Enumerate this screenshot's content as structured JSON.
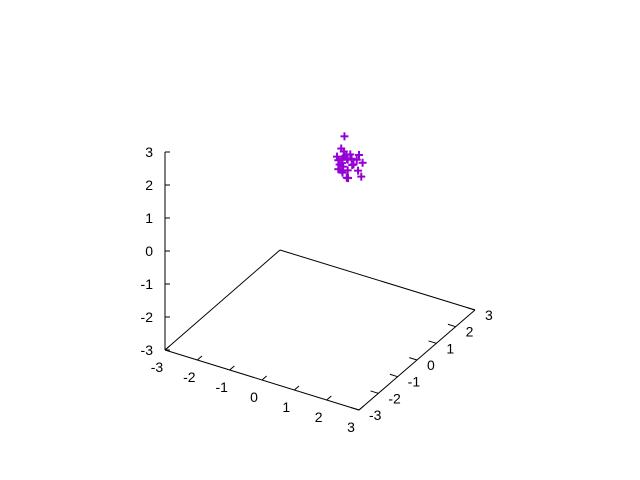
{
  "chart_data": {
    "type": "scatter",
    "dimensions": 3,
    "xlim": [
      -3,
      3
    ],
    "ylim": [
      -3,
      3
    ],
    "zlim": [
      -3,
      3
    ],
    "x_ticks": [
      "-3",
      "-2",
      "-1",
      "0",
      "1",
      "2",
      "3"
    ],
    "y_ticks": [
      "-3",
      "-2",
      "-1",
      "0",
      "1",
      "2",
      "3"
    ],
    "z_ticks": [
      "-3",
      "-2",
      "-1",
      "0",
      "1",
      "2",
      "3"
    ],
    "grid": false,
    "legend": "none",
    "marker": "plus",
    "color": "#9400d3",
    "series": [
      {
        "points": [
          [
            -0.3,
            1.6,
            1.6
          ],
          [
            -0.2,
            1.7,
            1.4
          ],
          [
            -0.25,
            1.55,
            1.2
          ],
          [
            -0.15,
            1.65,
            1.3
          ],
          [
            -0.35,
            1.6,
            1.1
          ],
          [
            -0.1,
            1.8,
            1.25
          ],
          [
            -0.3,
            1.7,
            1.0
          ],
          [
            -0.2,
            1.5,
            0.95
          ],
          [
            -0.05,
            1.75,
            1.1
          ],
          [
            -0.4,
            1.55,
            1.35
          ],
          [
            -0.25,
            1.85,
            1.15
          ],
          [
            -0.15,
            1.5,
            1.45
          ],
          [
            -0.3,
            1.65,
            0.9
          ],
          [
            -0.1,
            1.6,
            1.0
          ],
          [
            -0.2,
            1.9,
            1.3
          ],
          [
            -0.35,
            1.75,
            1.2
          ],
          [
            -0.45,
            1.7,
            1.15
          ],
          [
            0.05,
            1.65,
            1.2
          ],
          [
            -0.2,
            1.6,
            2.0
          ],
          [
            0.1,
            1.8,
            0.95
          ],
          [
            0.2,
            1.8,
            0.8
          ],
          [
            -0.15,
            1.7,
            0.7
          ],
          [
            -0.3,
            1.45,
            1.05
          ],
          [
            0.0,
            1.9,
            1.2
          ],
          [
            -0.25,
            1.65,
            1.5
          ],
          [
            0.3,
            1.7,
            1.3
          ],
          [
            0.1,
            1.85,
            1.4
          ],
          [
            -0.1,
            1.55,
            0.8
          ]
        ]
      }
    ]
  }
}
